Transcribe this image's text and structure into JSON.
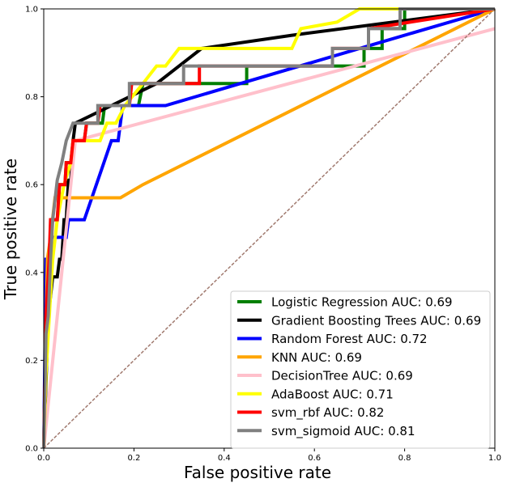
{
  "chart_data": {
    "type": "line",
    "xlabel": "False positive rate",
    "ylabel": "True positive rate",
    "xlim": [
      0,
      1
    ],
    "ylim": [
      0,
      1
    ],
    "xticks": [
      "0.0",
      "0.2",
      "0.4",
      "0.6",
      "0.8",
      "1.0"
    ],
    "yticks": [
      "0.0",
      "0.2",
      "0.4",
      "0.6",
      "0.8",
      "1.0"
    ],
    "grid": false,
    "legend_position": "lower-right",
    "reference_line": {
      "color": "#a0796e",
      "style": "dashed",
      "points": [
        [
          0,
          0
        ],
        [
          1,
          1
        ]
      ]
    },
    "series": [
      {
        "name": "Logistic Regression AUC: 0.69",
        "color": "#007f00",
        "points": [
          [
            0,
            0
          ],
          [
            0.005,
            0.3
          ],
          [
            0.012,
            0.43
          ],
          [
            0.018,
            0.52
          ],
          [
            0.03,
            0.52
          ],
          [
            0.035,
            0.6
          ],
          [
            0.047,
            0.6
          ],
          [
            0.05,
            0.65
          ],
          [
            0.06,
            0.65
          ],
          [
            0.065,
            0.7
          ],
          [
            0.09,
            0.7
          ],
          [
            0.095,
            0.74
          ],
          [
            0.13,
            0.74
          ],
          [
            0.135,
            0.78
          ],
          [
            0.21,
            0.78
          ],
          [
            0.22,
            0.83
          ],
          [
            0.45,
            0.83
          ],
          [
            0.45,
            0.87
          ],
          [
            0.71,
            0.87
          ],
          [
            0.71,
            0.91
          ],
          [
            0.75,
            0.91
          ],
          [
            0.75,
            0.955
          ],
          [
            0.8,
            0.955
          ],
          [
            0.8,
            1
          ],
          [
            1,
            1
          ]
        ]
      },
      {
        "name": "Gradient Boosting Trees AUC: 0.69",
        "color": "#000000",
        "points": [
          [
            0,
            0
          ],
          [
            0.01,
            0.3
          ],
          [
            0.02,
            0.39
          ],
          [
            0.03,
            0.39
          ],
          [
            0.035,
            0.43
          ],
          [
            0.04,
            0.43
          ],
          [
            0.045,
            0.52
          ],
          [
            0.05,
            0.52
          ],
          [
            0.055,
            0.61
          ],
          [
            0.06,
            0.61
          ],
          [
            0.065,
            0.7
          ],
          [
            0.07,
            0.74
          ],
          [
            0.15,
            0.78
          ],
          [
            0.25,
            0.83
          ],
          [
            0.35,
            0.91
          ],
          [
            0.55,
            0.94
          ],
          [
            1,
            1
          ]
        ]
      },
      {
        "name": "Random Forest AUC: 0.72",
        "color": "#0000ff",
        "points": [
          [
            0,
            0
          ],
          [
            0.005,
            0.43
          ],
          [
            0.01,
            0.43
          ],
          [
            0.015,
            0.48
          ],
          [
            0.025,
            0.48
          ],
          [
            0.03,
            0.48
          ],
          [
            0.05,
            0.48
          ],
          [
            0.055,
            0.52
          ],
          [
            0.065,
            0.52
          ],
          [
            0.07,
            0.52
          ],
          [
            0.09,
            0.52
          ],
          [
            0.15,
            0.7
          ],
          [
            0.165,
            0.7
          ],
          [
            0.175,
            0.78
          ],
          [
            0.27,
            0.78
          ],
          [
            0.7,
            0.91
          ],
          [
            1,
            1
          ]
        ]
      },
      {
        "name": "KNN AUC: 0.69",
        "color": "#ffa500",
        "points": [
          [
            0,
            0
          ],
          [
            0.008,
            0.43
          ],
          [
            0.015,
            0.48
          ],
          [
            0.025,
            0.57
          ],
          [
            0.17,
            0.57
          ],
          [
            0.22,
            0.6
          ],
          [
            1,
            1
          ]
        ]
      },
      {
        "name": "DecisionTree AUC: 0.69",
        "color": "#ffc0cb",
        "points": [
          [
            0,
            0
          ],
          [
            0.07,
            0.7
          ],
          [
            1,
            0.955
          ]
        ]
      },
      {
        "name": "AdaBoost AUC: 0.71",
        "color": "#ffff00",
        "points": [
          [
            0,
            0
          ],
          [
            0.005,
            0.17
          ],
          [
            0.01,
            0.26
          ],
          [
            0.015,
            0.35
          ],
          [
            0.02,
            0.43
          ],
          [
            0.03,
            0.52
          ],
          [
            0.045,
            0.6
          ],
          [
            0.06,
            0.65
          ],
          [
            0.065,
            0.7
          ],
          [
            0.125,
            0.7
          ],
          [
            0.14,
            0.74
          ],
          [
            0.16,
            0.74
          ],
          [
            0.18,
            0.78
          ],
          [
            0.22,
            0.83
          ],
          [
            0.25,
            0.87
          ],
          [
            0.27,
            0.87
          ],
          [
            0.3,
            0.91
          ],
          [
            0.55,
            0.91
          ],
          [
            0.57,
            0.955
          ],
          [
            0.65,
            0.97
          ],
          [
            0.7,
            1
          ],
          [
            1,
            1
          ]
        ]
      },
      {
        "name": "svm_rbf AUC: 0.82",
        "color": "#ff0000",
        "points": [
          [
            0,
            0
          ],
          [
            0.005,
            0.3
          ],
          [
            0.012,
            0.43
          ],
          [
            0.015,
            0.52
          ],
          [
            0.03,
            0.52
          ],
          [
            0.035,
            0.6
          ],
          [
            0.047,
            0.6
          ],
          [
            0.05,
            0.65
          ],
          [
            0.06,
            0.65
          ],
          [
            0.065,
            0.7
          ],
          [
            0.09,
            0.7
          ],
          [
            0.095,
            0.74
          ],
          [
            0.12,
            0.74
          ],
          [
            0.125,
            0.78
          ],
          [
            0.19,
            0.78
          ],
          [
            0.195,
            0.83
          ],
          [
            0.345,
            0.83
          ],
          [
            0.345,
            0.87
          ],
          [
            0.64,
            0.87
          ],
          [
            0.64,
            0.91
          ],
          [
            0.72,
            0.91
          ],
          [
            0.72,
            0.955
          ],
          [
            1,
            1
          ]
        ]
      },
      {
        "name": "svm_sigmoid AUC: 0.81",
        "color": "#808080",
        "points": [
          [
            0,
            0
          ],
          [
            0.005,
            0.26
          ],
          [
            0.01,
            0.3
          ],
          [
            0.015,
            0.43
          ],
          [
            0.02,
            0.52
          ],
          [
            0.03,
            0.61
          ],
          [
            0.04,
            0.65
          ],
          [
            0.05,
            0.7
          ],
          [
            0.065,
            0.74
          ],
          [
            0.12,
            0.74
          ],
          [
            0.12,
            0.78
          ],
          [
            0.19,
            0.78
          ],
          [
            0.19,
            0.83
          ],
          [
            0.31,
            0.83
          ],
          [
            0.31,
            0.87
          ],
          [
            0.64,
            0.87
          ],
          [
            0.64,
            0.91
          ],
          [
            0.72,
            0.91
          ],
          [
            0.72,
            0.955
          ],
          [
            0.79,
            0.955
          ],
          [
            0.79,
            1
          ],
          [
            1,
            1
          ]
        ]
      }
    ]
  }
}
